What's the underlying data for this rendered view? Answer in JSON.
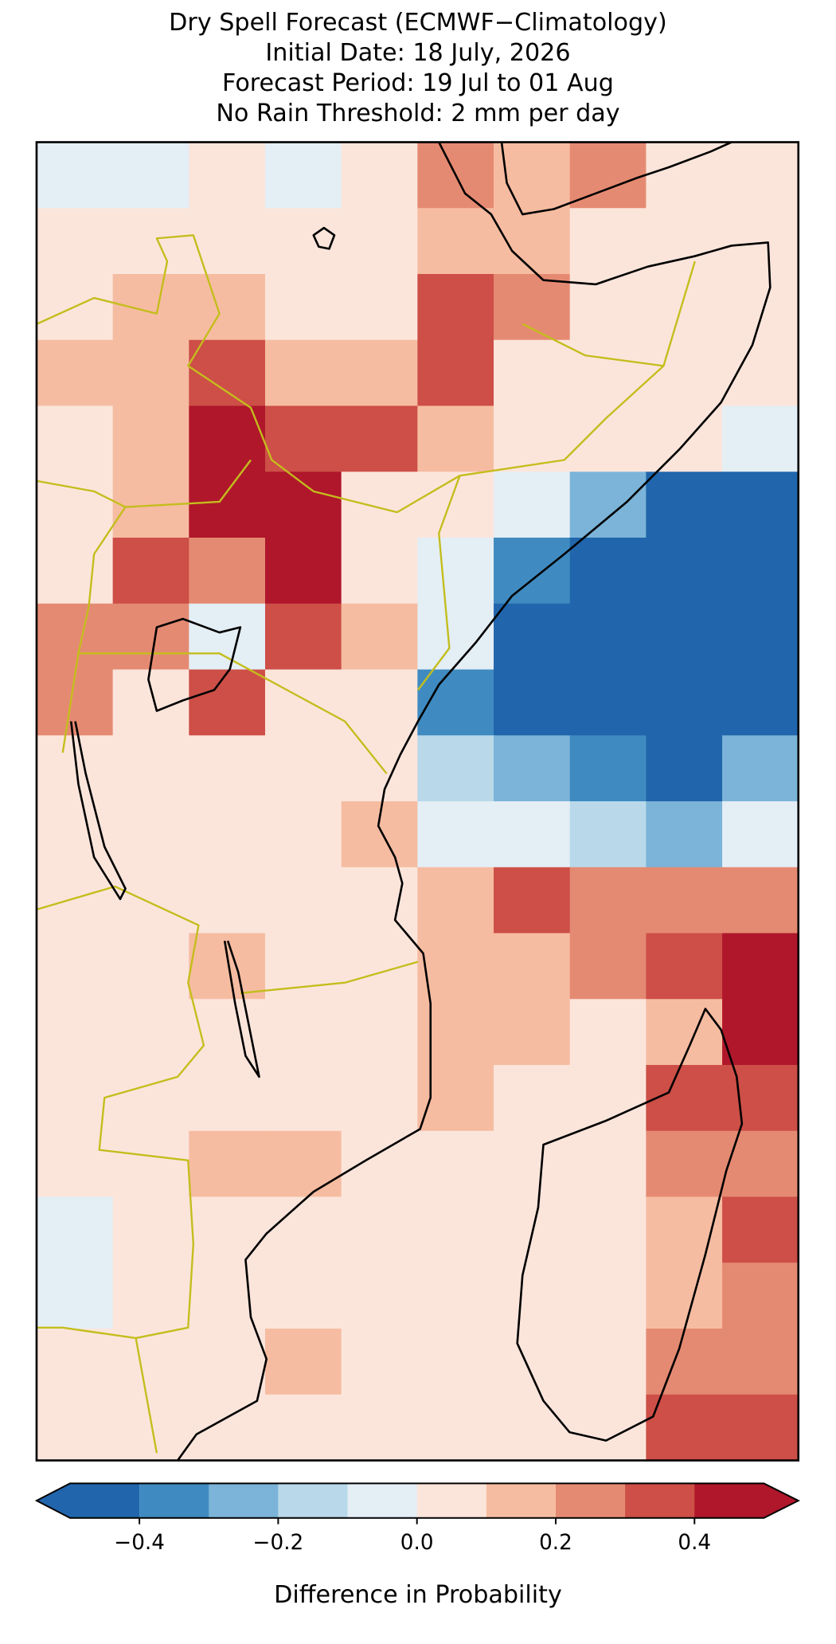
{
  "chart_data": {
    "type": "raster-map",
    "title": [
      "Dry Spell Forecast (ECMWF−Climatology)",
      "Initial Date: 18 July, 2026",
      "Forecast Period: 19 Jul to 01 Aug",
      "No Rain Threshold: 2 mm per day"
    ],
    "cells": [
      [
        -0.05,
        -0.05,
        0.05,
        -0.05,
        0.05,
        0.25,
        0.15,
        0.25,
        0.05,
        0.05
      ],
      [
        0.05,
        0.05,
        0.05,
        0.05,
        0.05,
        0.15,
        0.15,
        0.05,
        0.05,
        0.05
      ],
      [
        0.05,
        0.15,
        0.15,
        0.05,
        0.05,
        0.35,
        0.25,
        0.05,
        0.05,
        0.05
      ],
      [
        0.15,
        0.15,
        0.35,
        0.15,
        0.15,
        0.35,
        0.05,
        0.05,
        0.05,
        0.05
      ],
      [
        0.05,
        0.15,
        0.45,
        0.35,
        0.35,
        0.15,
        0.05,
        0.05,
        0.05,
        -0.05
      ],
      [
        0.05,
        0.15,
        0.45,
        0.45,
        0.05,
        0.05,
        -0.05,
        -0.25,
        -0.45,
        -0.45
      ],
      [
        0.05,
        0.35,
        0.25,
        0.45,
        0.05,
        -0.05,
        -0.35,
        -0.45,
        -0.45,
        -0.45
      ],
      [
        0.25,
        0.25,
        -0.05,
        0.35,
        0.15,
        -0.05,
        -0.45,
        -0.45,
        -0.45,
        -0.45
      ],
      [
        0.25,
        0.05,
        0.35,
        0.05,
        0.05,
        -0.35,
        -0.45,
        -0.45,
        -0.45,
        -0.45
      ],
      [
        0.05,
        0.05,
        0.05,
        0.05,
        0.05,
        -0.15,
        -0.25,
        -0.35,
        -0.45,
        -0.25
      ],
      [
        0.05,
        0.05,
        0.05,
        0.05,
        0.15,
        -0.05,
        -0.05,
        -0.15,
        -0.25,
        -0.05
      ],
      [
        0.05,
        0.05,
        0.05,
        0.05,
        0.05,
        0.15,
        0.35,
        0.25,
        0.25,
        0.25
      ],
      [
        0.05,
        0.05,
        0.15,
        0.05,
        0.05,
        0.15,
        0.15,
        0.25,
        0.35,
        0.45
      ],
      [
        0.05,
        0.05,
        0.05,
        0.05,
        0.05,
        0.15,
        0.15,
        0.05,
        0.15,
        0.45
      ],
      [
        0.05,
        0.05,
        0.05,
        0.05,
        0.05,
        0.15,
        0.05,
        0.05,
        0.35,
        0.35
      ],
      [
        0.05,
        0.05,
        0.15,
        0.15,
        0.05,
        0.05,
        0.05,
        0.05,
        0.25,
        0.25
      ],
      [
        -0.05,
        0.05,
        0.05,
        0.05,
        0.05,
        0.05,
        0.05,
        0.05,
        0.15,
        0.35
      ],
      [
        -0.05,
        0.05,
        0.05,
        0.05,
        0.05,
        0.05,
        0.05,
        0.05,
        0.15,
        0.25
      ],
      [
        0.05,
        0.05,
        0.05,
        0.15,
        0.05,
        0.05,
        0.05,
        0.05,
        0.25,
        0.25
      ],
      [
        0.05,
        0.05,
        0.05,
        0.05,
        0.05,
        0.05,
        0.05,
        0.05,
        0.35,
        0.35
      ]
    ],
    "colorbar": {
      "label": "Difference in Probability",
      "clim": [
        -0.5,
        0.5
      ],
      "levels": [
        -0.4,
        -0.3,
        -0.2,
        -0.1,
        0,
        0.1,
        0.2,
        0.3,
        0.4
      ],
      "colors": [
        "#2166ac",
        "#3f8bc1",
        "#7bb4d8",
        "#b9d9ea",
        "#e4eef5",
        "#fbe5db",
        "#f6bca1",
        "#e58a72",
        "#cd4f47",
        "#b0172b"
      ],
      "ticks": [
        {
          "value": -0.4,
          "label": "−0.4"
        },
        {
          "value": -0.2,
          "label": "−0.2"
        },
        {
          "value": 0,
          "label": "0.0"
        },
        {
          "value": 0.2,
          "label": "0.2"
        },
        {
          "value": 0.4,
          "label": "0.4"
        }
      ]
    }
  }
}
